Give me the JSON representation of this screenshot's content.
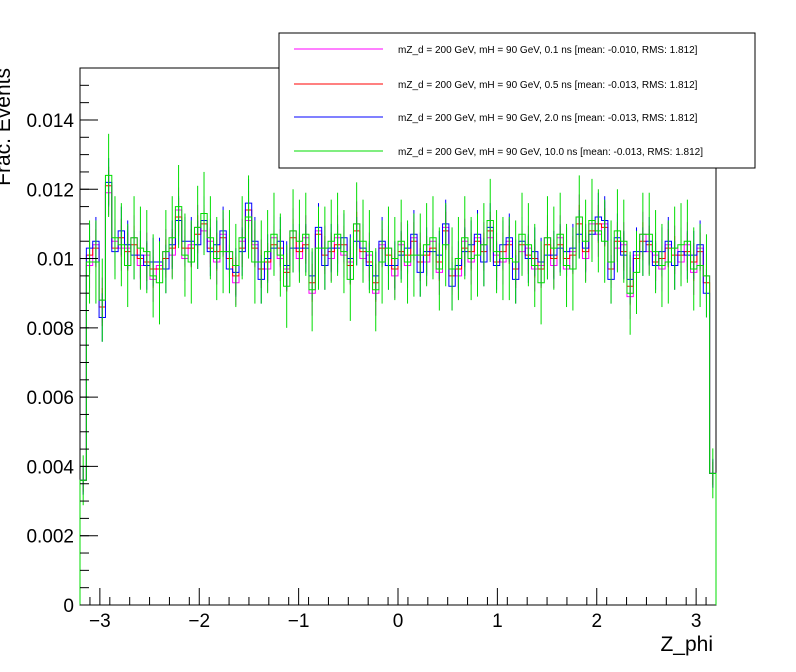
{
  "chart_data": {
    "type": "line",
    "title": "",
    "xlabel": "Z_phi",
    "ylabel": "Frac. Events",
    "xlim": [
      -3.2,
      3.2
    ],
    "ylim": [
      0,
      0.0155
    ],
    "xticks": [
      "−3",
      "−2",
      "−1",
      "0",
      "1",
      "2",
      "3"
    ],
    "yticks": [
      "0",
      "0.002",
      "0.004",
      "0.006",
      "0.008",
      "0.01",
      "0.012",
      "0.014"
    ],
    "ytick_values": [
      0,
      0.002,
      0.004,
      0.006,
      0.008,
      0.01,
      0.012,
      0.014
    ],
    "xtick_values": [
      -3,
      -2,
      -1,
      0,
      1,
      2,
      3
    ],
    "legend_position": "top-right",
    "series": [
      {
        "name": "mZ_d = 200 GeV, mH = 90 GeV, 0.1 ns [mean: -0.010, RMS: 1.812]",
        "color": "#ff00ff"
      },
      {
        "name": "mZ_d = 200 GeV, mH = 90 GeV, 0.5 ns [mean: -0.013, RMS: 1.812]",
        "color": "#ff0000"
      },
      {
        "name": "mZ_d = 200 GeV, mH = 90 GeV, 2.0 ns [mean: -0.013, RMS: 1.812]",
        "color": "#0000ff"
      },
      {
        "name": "mZ_d = 200 GeV, mH = 90 GeV, 10.0 ns [mean: -0.013, RMS: 1.812]",
        "color": "#00dd00"
      }
    ],
    "bin_edges_range": [
      -3.2,
      3.2
    ],
    "n_bins": 100,
    "values": [
      0.0036,
      0.0101,
      0.0103,
      0.0086,
      0.0121,
      0.0103,
      0.0106,
      0.0102,
      0.0104,
      0.01,
      0.0099,
      0.0097,
      0.0097,
      0.01,
      0.0103,
      0.0112,
      0.0103,
      0.0103,
      0.0107,
      0.011,
      0.0103,
      0.0102,
      0.0106,
      0.01,
      0.0095,
      0.0103,
      0.0114,
      0.0103,
      0.0097,
      0.0099,
      0.0104,
      0.0103,
      0.0096,
      0.0106,
      0.0102,
      0.0104,
      0.0093,
      0.0107,
      0.0101,
      0.0102,
      0.0104,
      0.0104,
      0.0098,
      0.0108,
      0.0102,
      0.0099,
      0.0093,
      0.0103,
      0.0101,
      0.0097,
      0.0102,
      0.0101,
      0.0105,
      0.0099,
      0.0101,
      0.0103,
      0.0099,
      0.0108,
      0.0095,
      0.0097,
      0.0103,
      0.0102,
      0.0105,
      0.0102,
      0.0108,
      0.0099,
      0.0102,
      0.0104,
      0.0097,
      0.0104,
      0.0101,
      0.01,
      0.0097,
      0.0104,
      0.01,
      0.0104,
      0.01,
      0.0101,
      0.011,
      0.0102,
      0.0108,
      0.011,
      0.0109,
      0.0097,
      0.0105,
      0.0102,
      0.0092,
      0.01,
      0.0105,
      0.0104,
      0.0099,
      0.01,
      0.0103,
      0.0101,
      0.0101,
      0.0102,
      0.0099,
      0.0102,
      0.0093,
      0.0038
    ]
  }
}
